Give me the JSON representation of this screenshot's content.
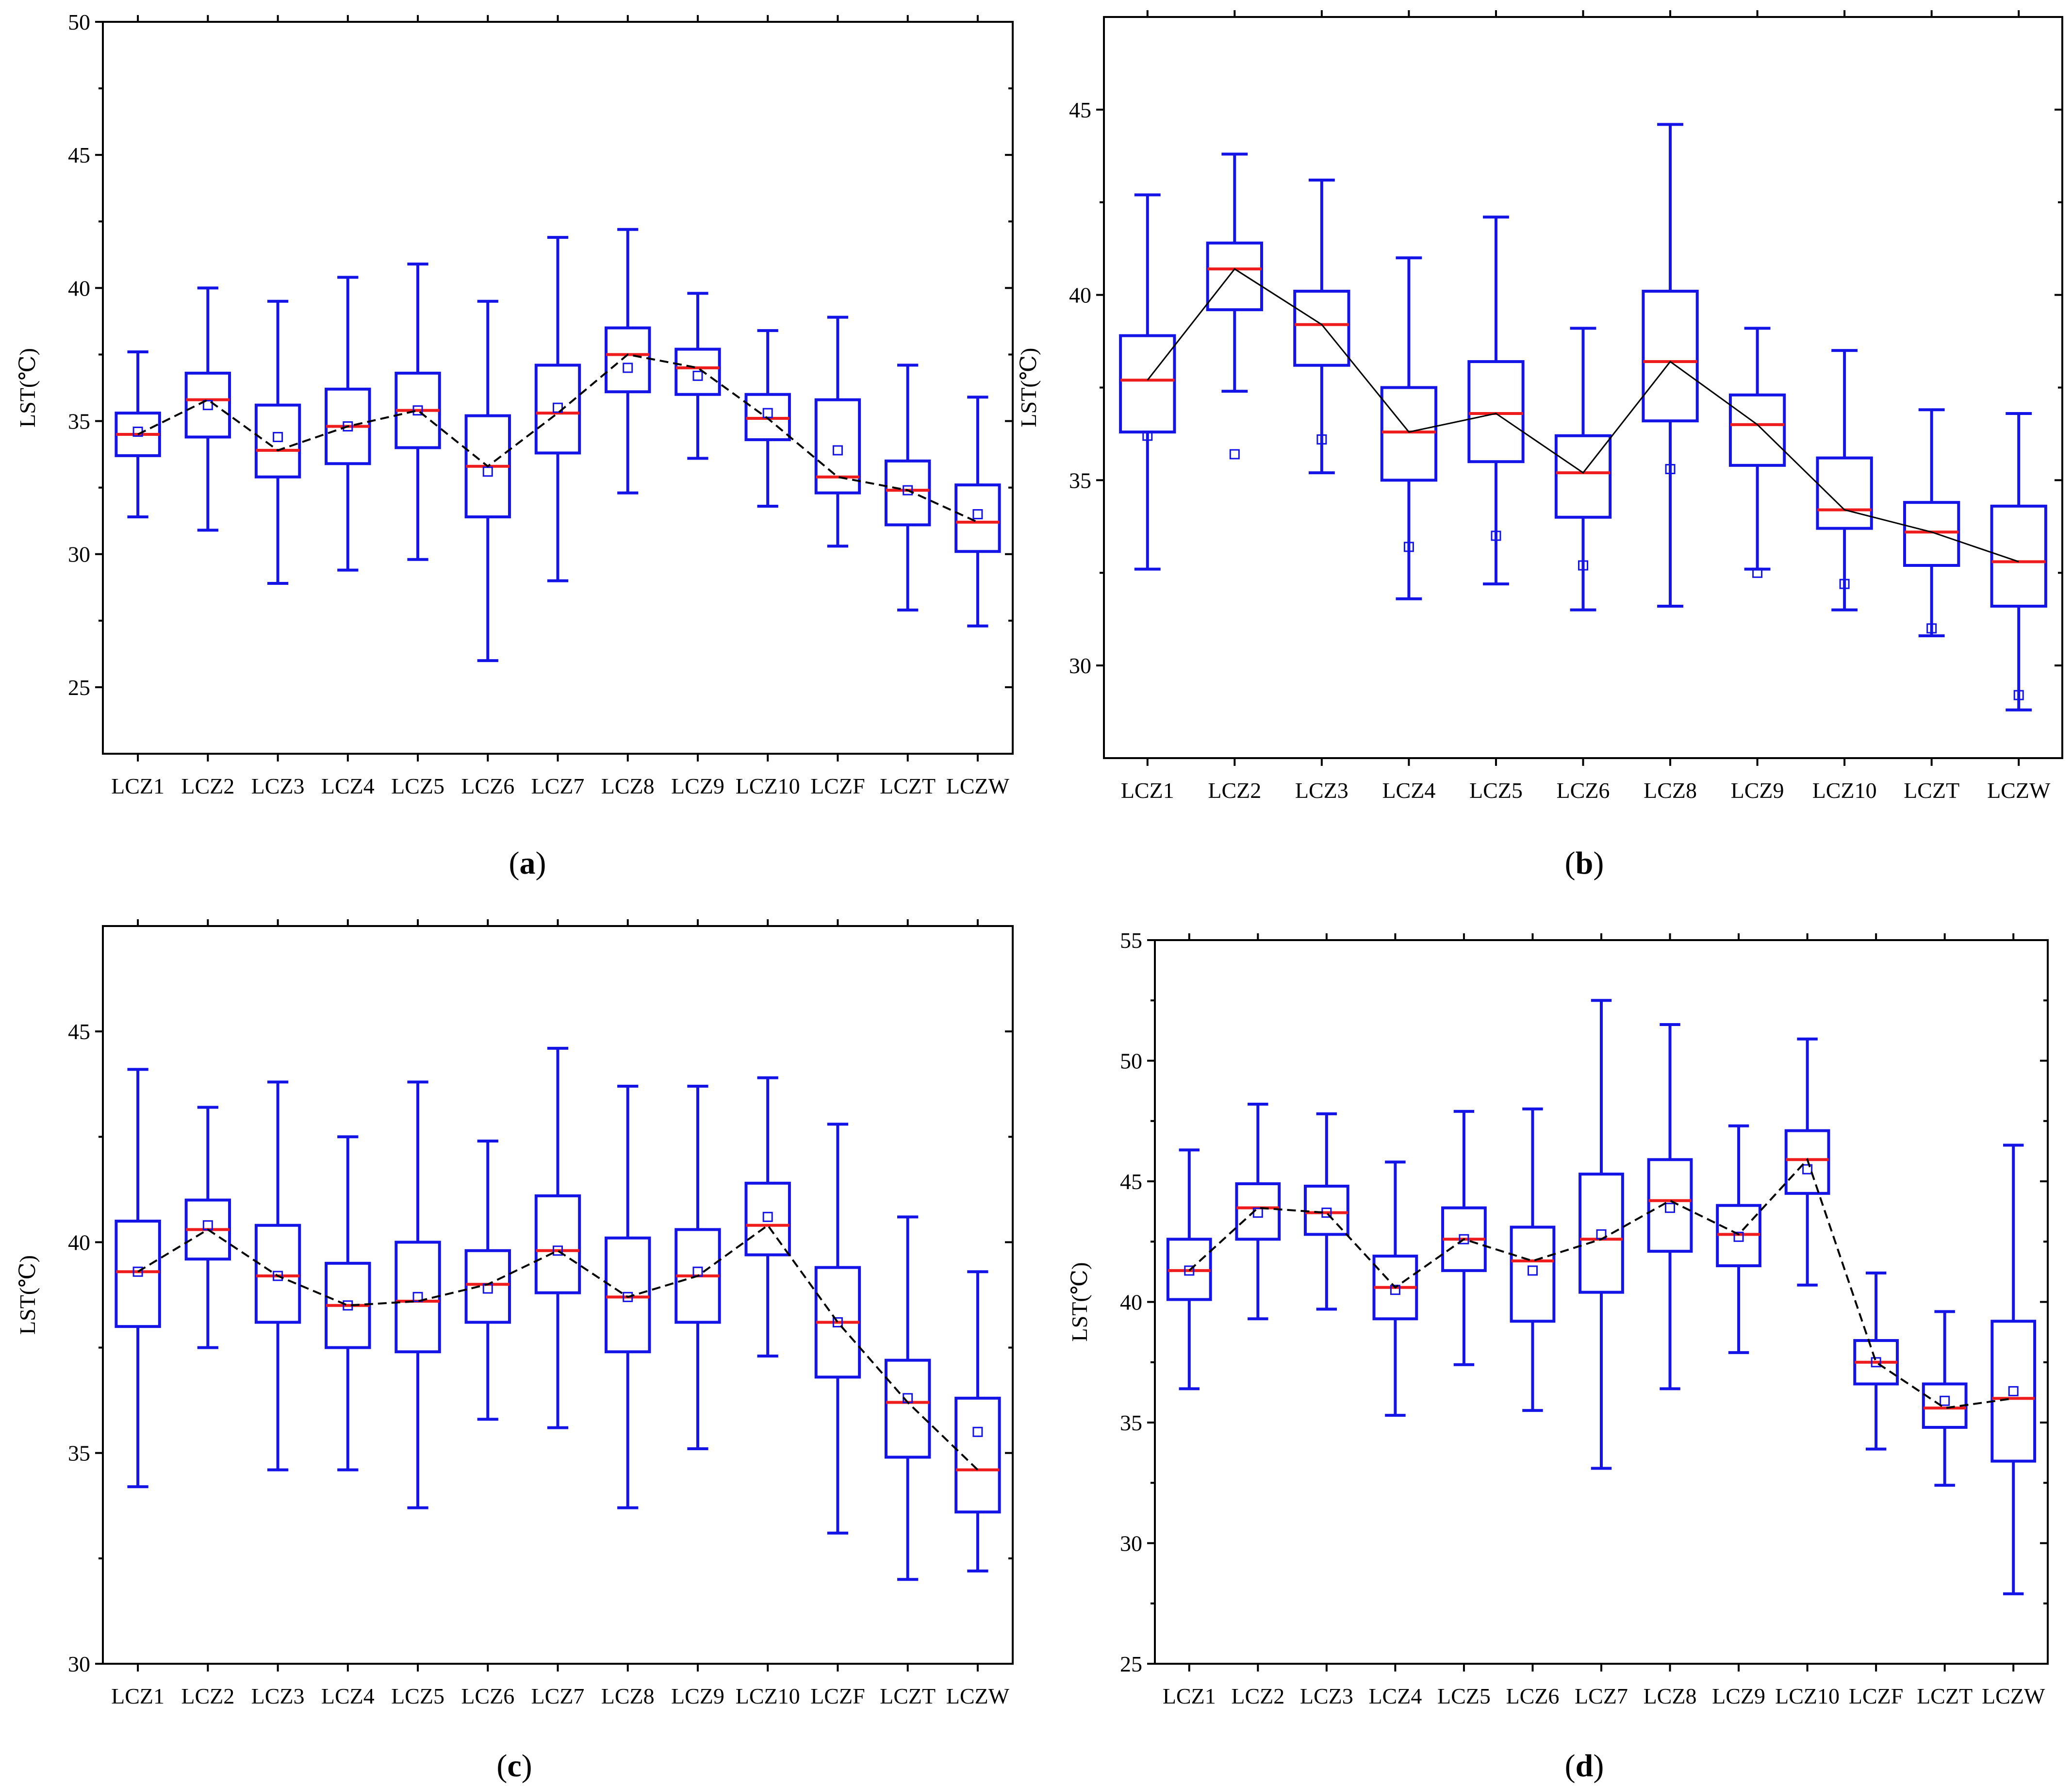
{
  "colors": {
    "box": "#1414e6",
    "median": "#ee1c1c",
    "trend": "#000000",
    "axis": "#000000"
  },
  "chart_data": [
    {
      "panel": "a",
      "caption_label": "a",
      "type": "box",
      "ylabel": "LST(℃)",
      "ylim": [
        22.5,
        50
      ],
      "yticks": [
        25,
        30,
        35,
        40,
        45,
        50
      ],
      "trend": "dashed",
      "categories": [
        "LCZ1",
        "LCZ2",
        "LCZ3",
        "LCZ4",
        "LCZ5",
        "LCZ6",
        "LCZ7",
        "LCZ8",
        "LCZ9",
        "LCZ10",
        "LCZF",
        "LCZT",
        "LCZW"
      ],
      "min": [
        31.4,
        30.9,
        28.9,
        29.4,
        29.8,
        26.0,
        29.0,
        32.3,
        33.6,
        31.8,
        30.3,
        27.9,
        27.3
      ],
      "q1": [
        33.7,
        34.4,
        32.9,
        33.4,
        34.0,
        31.4,
        33.8,
        36.1,
        36.0,
        34.3,
        32.3,
        31.1,
        30.1
      ],
      "median": [
        34.5,
        35.8,
        33.9,
        34.8,
        35.4,
        33.3,
        35.3,
        37.5,
        37.0,
        35.1,
        32.9,
        32.4,
        31.2
      ],
      "q3": [
        35.3,
        36.8,
        35.6,
        36.2,
        36.8,
        35.2,
        37.1,
        38.5,
        37.7,
        36.0,
        35.8,
        33.5,
        32.6
      ],
      "max": [
        37.6,
        40.0,
        39.5,
        40.4,
        40.9,
        39.5,
        41.9,
        42.2,
        39.8,
        38.4,
        38.9,
        37.1,
        35.9
      ],
      "mean": [
        34.6,
        35.6,
        34.4,
        34.8,
        35.4,
        33.1,
        35.5,
        37.0,
        36.7,
        35.3,
        33.9,
        32.4,
        31.5
      ]
    },
    {
      "panel": "b",
      "caption_label": "b",
      "type": "box",
      "ylabel": "LST(℃)",
      "ylim": [
        27.5,
        47.5
      ],
      "yticks": [
        30,
        35,
        40,
        45
      ],
      "trend": "solid",
      "categories": [
        "LCZ1",
        "LCZ2",
        "LCZ3",
        "LCZ4",
        "LCZ5",
        "LCZ6",
        "LCZ8",
        "LCZ9",
        "LCZ10",
        "LCZT",
        "LCZW"
      ],
      "min": [
        32.6,
        37.4,
        35.2,
        31.8,
        32.2,
        31.5,
        31.6,
        32.6,
        31.5,
        30.8,
        28.8
      ],
      "q1": [
        36.3,
        39.6,
        38.1,
        35.0,
        35.5,
        34.0,
        36.6,
        35.4,
        33.7,
        32.7,
        31.6
      ],
      "median": [
        37.7,
        40.7,
        39.2,
        36.3,
        36.8,
        35.2,
        38.2,
        36.5,
        34.2,
        33.6,
        32.8
      ],
      "q3": [
        38.9,
        41.4,
        40.1,
        37.5,
        38.2,
        36.2,
        40.1,
        37.3,
        35.6,
        34.4,
        34.3
      ],
      "max": [
        42.7,
        43.8,
        43.1,
        41.0,
        42.1,
        39.1,
        44.6,
        39.1,
        38.5,
        36.9,
        36.8
      ],
      "mean": [
        36.2,
        35.7,
        36.1,
        33.2,
        33.5,
        32.7,
        35.3,
        32.5,
        32.2,
        31.0,
        29.2
      ]
    },
    {
      "panel": "c",
      "caption_label": "c",
      "type": "box",
      "ylabel": "LST(℃)",
      "ylim": [
        30,
        47.5
      ],
      "yticks": [
        30,
        35,
        40,
        45
      ],
      "trend": "dashed",
      "categories": [
        "LCZ1",
        "LCZ2",
        "LCZ3",
        "LCZ4",
        "LCZ5",
        "LCZ6",
        "LCZ7",
        "LCZ8",
        "LCZ9",
        "LCZ10",
        "LCZF",
        "LCZT",
        "LCZW"
      ],
      "min": [
        34.2,
        37.5,
        34.6,
        34.6,
        33.7,
        35.8,
        35.6,
        33.7,
        35.1,
        37.3,
        33.1,
        32.0,
        32.2
      ],
      "q1": [
        38.0,
        39.6,
        38.1,
        37.5,
        37.4,
        38.1,
        38.8,
        37.4,
        38.1,
        39.7,
        36.8,
        34.9,
        33.6
      ],
      "median": [
        39.3,
        40.3,
        39.2,
        38.5,
        38.6,
        39.0,
        39.8,
        38.7,
        39.2,
        40.4,
        38.1,
        36.2,
        34.6
      ],
      "q3": [
        40.5,
        41.0,
        40.4,
        39.5,
        40.0,
        39.8,
        41.1,
        40.1,
        40.3,
        41.4,
        39.4,
        37.2,
        36.3
      ],
      "max": [
        44.1,
        43.2,
        43.8,
        42.5,
        43.8,
        42.4,
        44.6,
        43.7,
        43.7,
        43.9,
        42.8,
        40.6,
        39.3
      ],
      "mean": [
        39.3,
        40.4,
        39.2,
        38.5,
        38.7,
        38.9,
        39.8,
        38.7,
        39.3,
        40.6,
        38.1,
        36.3,
        35.5
      ]
    },
    {
      "panel": "d",
      "caption_label": "d",
      "type": "box",
      "ylabel": "LST(℃)",
      "ylim": [
        25,
        55
      ],
      "yticks": [
        25,
        30,
        35,
        40,
        45,
        50,
        55
      ],
      "trend": "dashed",
      "categories": [
        "LCZ1",
        "LCZ2",
        "LCZ3",
        "LCZ4",
        "LCZ5",
        "LCZ6",
        "LCZ7",
        "LCZ8",
        "LCZ9",
        "LCZ10",
        "LCZF",
        "LCZT",
        "LCZW"
      ],
      "min": [
        36.4,
        39.3,
        39.7,
        35.3,
        37.4,
        35.5,
        33.1,
        36.4,
        37.9,
        40.7,
        33.9,
        32.4,
        27.9
      ],
      "q1": [
        40.1,
        42.6,
        42.8,
        39.3,
        41.3,
        39.2,
        40.4,
        42.1,
        41.5,
        44.5,
        36.6,
        34.8,
        33.4
      ],
      "median": [
        41.3,
        43.9,
        43.7,
        40.6,
        42.6,
        41.7,
        42.6,
        44.2,
        42.8,
        45.9,
        37.5,
        35.6,
        36.0
      ],
      "q3": [
        42.6,
        44.9,
        44.8,
        41.9,
        43.9,
        43.1,
        45.3,
        45.9,
        44.0,
        47.1,
        38.4,
        36.6,
        39.2
      ],
      "max": [
        46.3,
        48.2,
        47.8,
        45.8,
        47.9,
        48.0,
        52.5,
        51.5,
        47.3,
        50.9,
        41.2,
        39.6,
        46.5
      ],
      "mean": [
        41.3,
        43.7,
        43.7,
        40.5,
        42.6,
        41.3,
        42.8,
        43.9,
        42.7,
        45.5,
        37.5,
        35.9,
        36.3
      ]
    }
  ]
}
